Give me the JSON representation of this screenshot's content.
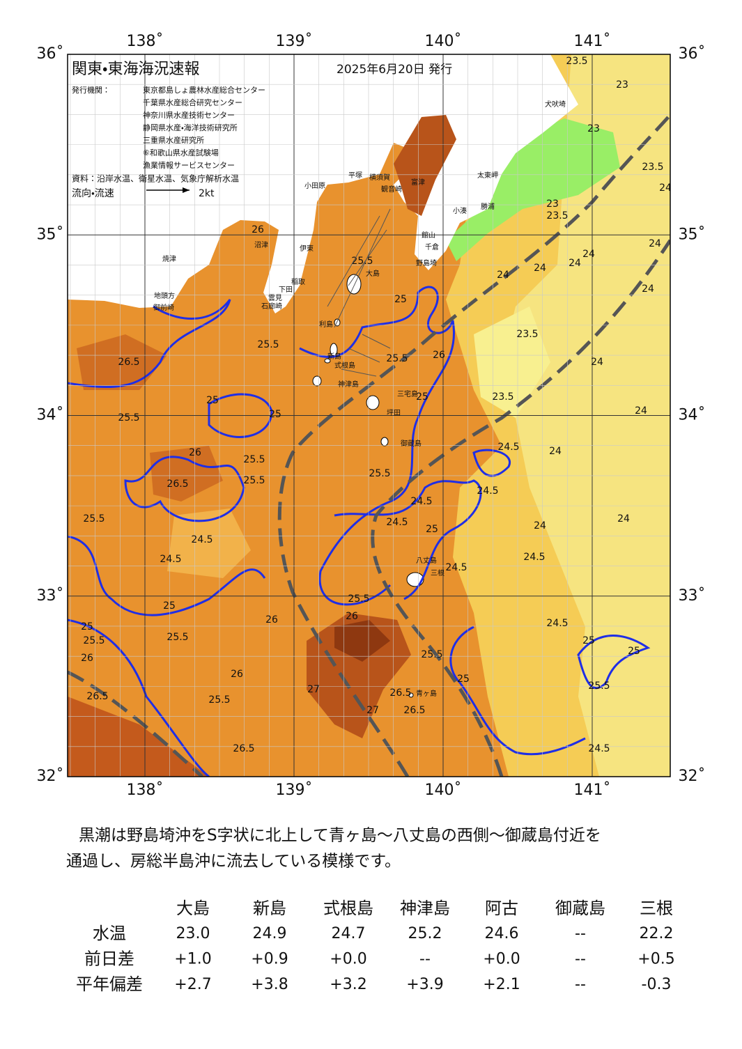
{
  "header": {
    "title": "関東・東海海況速報",
    "date": "2025年6月20日 発行",
    "issuer_label": "発行機関：",
    "issuers": [
      "東京都島しょ農林水産総合センター",
      "千葉県水産総合研究センター",
      "神奈川県水産技術センター",
      "静岡県水産・海洋技術研究所",
      "三重県水産研究所",
      "⑥和歌山県水産試験場",
      "漁業情報サービスセンター"
    ],
    "source": "資料：沿岸水温、衛星水温、気象庁解析水温",
    "flow_label": "流向・流速",
    "flow_scale": "2kt"
  },
  "map": {
    "lon_ticks": [
      {
        "value": 138,
        "label": "138˚"
      },
      {
        "value": 139,
        "label": "139˚"
      },
      {
        "value": 140,
        "label": "140˚"
      },
      {
        "value": 141,
        "label": "141˚"
      }
    ],
    "lat_ticks": [
      {
        "value": 36,
        "label": "36˚"
      },
      {
        "value": 35,
        "label": "35˚"
      },
      {
        "value": 34,
        "label": "34˚"
      },
      {
        "value": 33,
        "label": "33˚"
      },
      {
        "value": 32,
        "label": "32˚"
      }
    ],
    "place_names": [
      "大島",
      "利島",
      "新島",
      "式根島",
      "神津島",
      "三宅島",
      "坪田",
      "御蔵島",
      "八丈島",
      "三根",
      "青ヶ島",
      "犬吠埼",
      "太東岬",
      "勝浦",
      "小湊",
      "館山",
      "千倉",
      "野島埼",
      "富津",
      "横須賀",
      "観音崎",
      "平塚",
      "小田原",
      "伊東",
      "稲取",
      "下田",
      "焼津",
      "地頭方",
      "御前崎",
      "沼津",
      "雲見",
      "石廊崎"
    ],
    "contour_labels": [
      "23.5",
      "23",
      "23",
      "23.5",
      "24",
      "23",
      "23.5",
      "24",
      "24",
      "24",
      "24",
      "24",
      "24",
      "23.5",
      "24",
      "23.5",
      "24",
      "24",
      "24.5",
      "24.5",
      "24",
      "24",
      "24.5",
      "24.5",
      "24.5",
      "25",
      "25",
      "25.5",
      "24.5",
      "25",
      "25",
      "25.5",
      "26.5",
      "25.5",
      "26",
      "26.5",
      "25.5",
      "25.5",
      "25.5",
      "24.5",
      "24.5",
      "25.5",
      "25.5",
      "25",
      "25.5",
      "26",
      "25",
      "24.5",
      "24.5",
      "25",
      "25.5",
      "26",
      "26",
      "26",
      "25.5",
      "26.5",
      "25.5",
      "26.5",
      "26.5",
      "27",
      "27",
      "25",
      "25",
      "25.5",
      "26",
      "26.5",
      "25",
      "25.5",
      "26"
    ]
  },
  "summary": [
    "　黒潮は野島埼沖をS字状に北上して青ヶ島～八丈島の西側～御蔵島付近を",
    "通過し、房総半島沖に流去している模様です。"
  ],
  "table": {
    "columns": [
      "大島",
      "新島",
      "式根島",
      "神津島",
      "阿古",
      "御蔵島",
      "三根"
    ],
    "rows": [
      {
        "label": "水温",
        "values": [
          "23.0",
          "24.9",
          "24.7",
          "25.2",
          "24.6",
          "--",
          "22.2"
        ]
      },
      {
        "label": "前日差",
        "values": [
          "+1.0",
          "+0.9",
          "+0.0",
          "--",
          "+0.0",
          "--",
          "+0.5"
        ]
      },
      {
        "label": "平年偏差",
        "values": [
          "+2.7",
          "+3.8",
          "+3.2",
          "+3.9",
          "+2.1",
          "--",
          "-0.3"
        ]
      }
    ]
  }
}
